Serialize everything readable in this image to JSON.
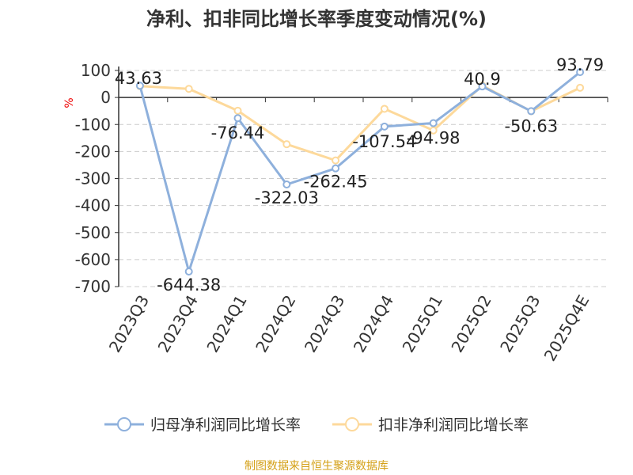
{
  "chart_data": {
    "type": "line",
    "title": "净利、扣非同比增长率季度变动情况(%)",
    "ylabel": "%",
    "ylim": [
      -700,
      100
    ],
    "yticks": [
      100,
      0,
      -100,
      -200,
      -300,
      -400,
      -500,
      -600,
      -700
    ],
    "grid": true,
    "legend_position": "bottom",
    "categories": [
      "2023Q3",
      "2023Q4",
      "2024Q1",
      "2024Q2",
      "2024Q3",
      "2024Q4",
      "2025Q1",
      "2025Q2",
      "2025Q3",
      "2025Q4E"
    ],
    "series": [
      {
        "name": "归母净利润同比增长率",
        "color": "#8eb0dc",
        "values": [
          43.63,
          -644.38,
          -76.44,
          -322.03,
          -262.45,
          -107.54,
          -94.98,
          40.9,
          -50.63,
          93.79
        ],
        "labels": [
          "43.63",
          "-644.38",
          "-76.44",
          "-322.03",
          "-262.45",
          "-107.54",
          "-94.98",
          "40.9",
          "-50.63",
          "93.79"
        ]
      },
      {
        "name": "扣非净利润同比增长率",
        "color": "#fdd99b",
        "values": [
          42,
          32,
          -49,
          -173,
          -233,
          -42,
          -122,
          44,
          -51,
          36
        ]
      }
    ]
  },
  "source": "制图数据来自恒生聚源数据库"
}
